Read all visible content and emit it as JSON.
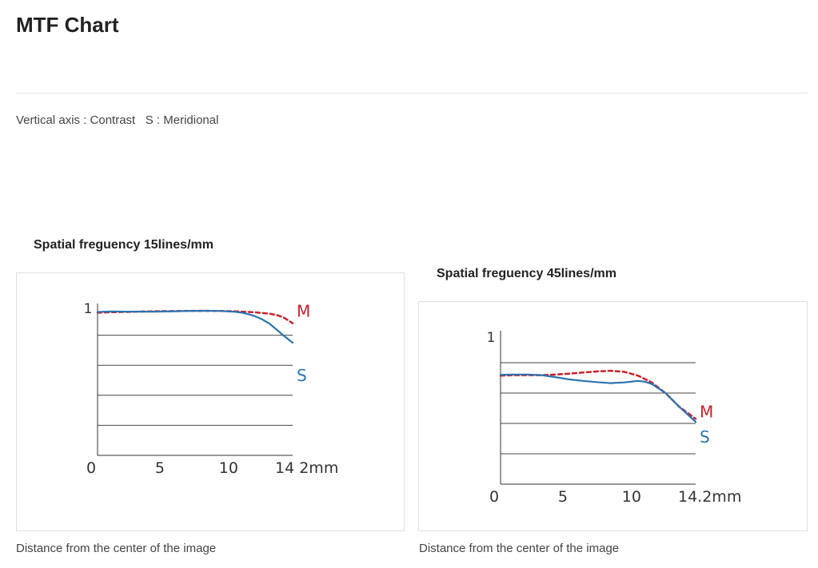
{
  "page": {
    "title": "MTF Chart",
    "legend_text": "Vertical axis : Contrast   S : Meridional",
    "caption": "Distance from the center of the image"
  },
  "colors": {
    "M": "#cc1f2c",
    "S": "#2b73b1",
    "axis": "#333333",
    "grid": "#444444"
  },
  "chart_data": [
    {
      "type": "line",
      "title": "Spatial freguency 15lines/mm",
      "xlabel": "",
      "ylabel": "",
      "xlim": [
        0,
        14.2
      ],
      "ylim": [
        0,
        1
      ],
      "x_ticks": [
        "0",
        "5",
        "10",
        "14 2mm"
      ],
      "x_tick_values": [
        0,
        5,
        10,
        14.2
      ],
      "y_ticks": [
        "1"
      ],
      "gridlines_y": [
        0.2,
        0.4,
        0.6,
        0.8
      ],
      "series": [
        {
          "name": "M",
          "style": "dashed",
          "x": [
            0,
            1,
            2,
            3,
            4,
            5,
            6,
            7,
            8,
            9,
            10,
            11,
            11.5,
            12,
            12.5,
            13,
            13.5,
            14.2
          ],
          "y": [
            0.95,
            0.953,
            0.955,
            0.957,
            0.959,
            0.96,
            0.961,
            0.962,
            0.962,
            0.961,
            0.959,
            0.955,
            0.952,
            0.948,
            0.943,
            0.935,
            0.92,
            0.88
          ]
        },
        {
          "name": "S",
          "style": "solid",
          "x": [
            0,
            1,
            2,
            3,
            4,
            5,
            6,
            7,
            8,
            9,
            10,
            10.5,
            11,
            11.5,
            12,
            12.5,
            13,
            13.5,
            14.2
          ],
          "y": [
            0.955,
            0.958,
            0.957,
            0.957,
            0.957,
            0.958,
            0.96,
            0.962,
            0.963,
            0.961,
            0.956,
            0.95,
            0.94,
            0.925,
            0.905,
            0.878,
            0.84,
            0.8,
            0.75
          ]
        }
      ]
    },
    {
      "type": "line",
      "title": "Spatial freguency 45lines/mm",
      "xlabel": "",
      "ylabel": "",
      "xlim": [
        0,
        14.2
      ],
      "ylim": [
        0,
        1
      ],
      "x_ticks": [
        "0",
        "5",
        "10",
        "14.2mm"
      ],
      "x_tick_values": [
        0,
        5,
        10,
        14.2
      ],
      "y_ticks": [
        "1"
      ],
      "gridlines_y": [
        0.2,
        0.4,
        0.6,
        0.8
      ],
      "series": [
        {
          "name": "M",
          "style": "dashed",
          "x": [
            0,
            1,
            2,
            3,
            4,
            5,
            6,
            7,
            8,
            9,
            10,
            11,
            12,
            13,
            14.2
          ],
          "y": [
            0.715,
            0.718,
            0.718,
            0.718,
            0.722,
            0.728,
            0.735,
            0.742,
            0.747,
            0.74,
            0.715,
            0.67,
            0.6,
            0.51,
            0.43
          ]
        },
        {
          "name": "S",
          "style": "solid",
          "x": [
            0,
            1,
            2,
            3,
            4,
            5,
            6,
            7,
            8,
            9,
            10,
            10.5,
            11,
            12,
            13,
            14.2
          ],
          "y": [
            0.72,
            0.722,
            0.722,
            0.718,
            0.705,
            0.69,
            0.68,
            0.672,
            0.665,
            0.67,
            0.68,
            0.675,
            0.66,
            0.6,
            0.51,
            0.41
          ]
        }
      ]
    }
  ]
}
